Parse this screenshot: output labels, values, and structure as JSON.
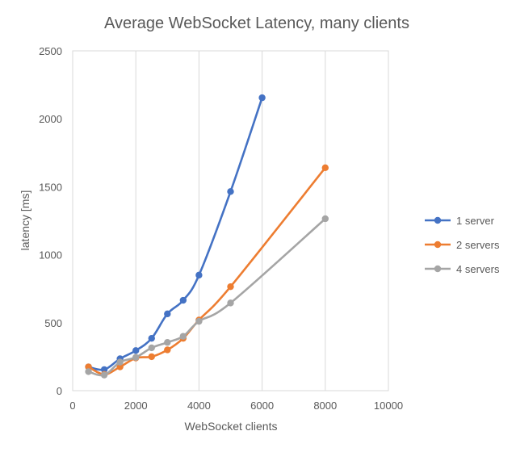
{
  "chart_data": {
    "type": "scatter",
    "title": "Average WebSocket Latency, many clients",
    "xlabel": "WebSocket clients",
    "ylabel": "latency [ms]",
    "xlim": [
      0,
      10000
    ],
    "ylim": [
      0,
      2500
    ],
    "xticks": [
      "0",
      "2000",
      "4000",
      "6000",
      "8000",
      "10000"
    ],
    "yticks": [
      "0",
      "500",
      "1000",
      "1500",
      "2000",
      "2500"
    ],
    "grid": "vertical",
    "legend_position": "right",
    "smooth_lines": true,
    "series": [
      {
        "name": "1 server",
        "color": "#4472C4",
        "x": [
          500,
          1000,
          1500,
          2000,
          2500,
          3000,
          3500,
          4000,
          5000,
          6000
        ],
        "y": [
          175,
          155,
          235,
          295,
          385,
          565,
          665,
          850,
          1465,
          2155
        ]
      },
      {
        "name": "2 servers",
        "color": "#ED7D31",
        "x": [
          500,
          1000,
          1500,
          2000,
          2500,
          3000,
          3500,
          4000,
          5000,
          8000
        ],
        "y": [
          175,
          120,
          175,
          240,
          250,
          300,
          385,
          520,
          765,
          1640
        ]
      },
      {
        "name": "4 servers",
        "color": "#A5A5A5",
        "x": [
          500,
          1000,
          1500,
          2000,
          2500,
          3000,
          3500,
          4000,
          5000,
          8000
        ],
        "y": [
          140,
          115,
          210,
          245,
          315,
          355,
          400,
          510,
          645,
          1265
        ]
      }
    ]
  }
}
